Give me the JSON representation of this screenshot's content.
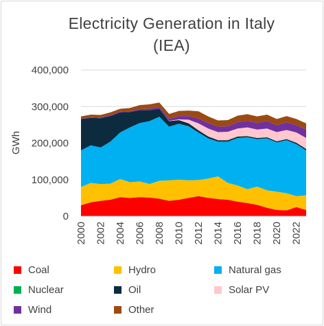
{
  "chart_data": {
    "type": "area",
    "stacked": true,
    "title_line1": "Electricity Generation in Italy",
    "title_line2": "(IEA)",
    "ylabel": "GWh",
    "xlabel": "",
    "ylim": [
      0,
      400000
    ],
    "yticks": [
      "0",
      "100,000",
      "200,000",
      "300,000",
      "400,000"
    ],
    "xticks": [
      "2000",
      "2002",
      "2004",
      "2006",
      "2008",
      "2010",
      "2012",
      "2014",
      "2016",
      "2018",
      "2020",
      "2022"
    ],
    "x": [
      2000,
      2001,
      2002,
      2003,
      2004,
      2005,
      2006,
      2007,
      2008,
      2009,
      2010,
      2011,
      2012,
      2013,
      2014,
      2015,
      2016,
      2017,
      2018,
      2019,
      2020,
      2021,
      2022,
      2023
    ],
    "grid": true,
    "legend_position": "bottom",
    "series": [
      {
        "name": "Coal",
        "color": "#ff0000",
        "values": [
          30000,
          38000,
          42000,
          45000,
          52000,
          50000,
          52000,
          51000,
          48000,
          42000,
          45000,
          50000,
          55000,
          50000,
          47000,
          45000,
          40000,
          36000,
          31000,
          23000,
          17000,
          16000,
          25000,
          17000
        ]
      },
      {
        "name": "Hydro",
        "color": "#ffc000",
        "values": [
          50000,
          53000,
          46000,
          44000,
          50000,
          43000,
          43000,
          37000,
          49000,
          56000,
          55000,
          48000,
          44000,
          53000,
          62000,
          46000,
          44000,
          38000,
          50000,
          48000,
          50000,
          47000,
          30000,
          40000
        ]
      },
      {
        "name": "Natural gas",
        "color": "#00b0f0",
        "values": [
          100000,
          103000,
          100000,
          115000,
          127000,
          150000,
          160000,
          172000,
          175000,
          147000,
          153000,
          148000,
          130000,
          110000,
          95000,
          113000,
          130000,
          142000,
          130000,
          142000,
          135000,
          145000,
          142000,
          123000
        ]
      },
      {
        "name": "Nuclear",
        "color": "#00b050",
        "values": [
          0,
          0,
          0,
          0,
          0,
          0,
          0,
          0,
          0,
          0,
          0,
          0,
          0,
          0,
          0,
          0,
          0,
          0,
          0,
          0,
          0,
          0,
          0,
          0
        ]
      },
      {
        "name": "Oil",
        "color": "#0d2b3e",
        "values": [
          86000,
          75000,
          80000,
          70000,
          55000,
          42000,
          35000,
          30000,
          22000,
          15000,
          10000,
          8000,
          6000,
          5000,
          4000,
          4000,
          4000,
          3000,
          3000,
          3000,
          3000,
          3000,
          4000,
          4000
        ]
      },
      {
        "name": "Solar PV",
        "color": "#ffc7ce",
        "values": [
          0,
          0,
          0,
          0,
          0,
          0,
          0,
          0,
          0,
          700,
          2000,
          10000,
          19000,
          22000,
          22000,
          23000,
          22000,
          24000,
          23000,
          24000,
          25000,
          25000,
          28000,
          30000
        ]
      },
      {
        "name": "Wind",
        "color": "#7030a0",
        "values": [
          0,
          2000,
          2000,
          2000,
          2000,
          2000,
          3000,
          4000,
          5000,
          6000,
          9000,
          10000,
          13000,
          15000,
          15000,
          15000,
          17000,
          18000,
          18000,
          20000,
          19000,
          21000,
          20000,
          23000
        ]
      },
      {
        "name": "Other",
        "color": "#9c4a14",
        "values": [
          7000,
          7000,
          7000,
          8000,
          8000,
          9000,
          11000,
          12000,
          12000,
          13000,
          14000,
          15000,
          20000,
          18000,
          17000,
          17000,
          18000,
          18000,
          18000,
          18000,
          17000,
          17000,
          17000,
          17000
        ]
      }
    ]
  }
}
